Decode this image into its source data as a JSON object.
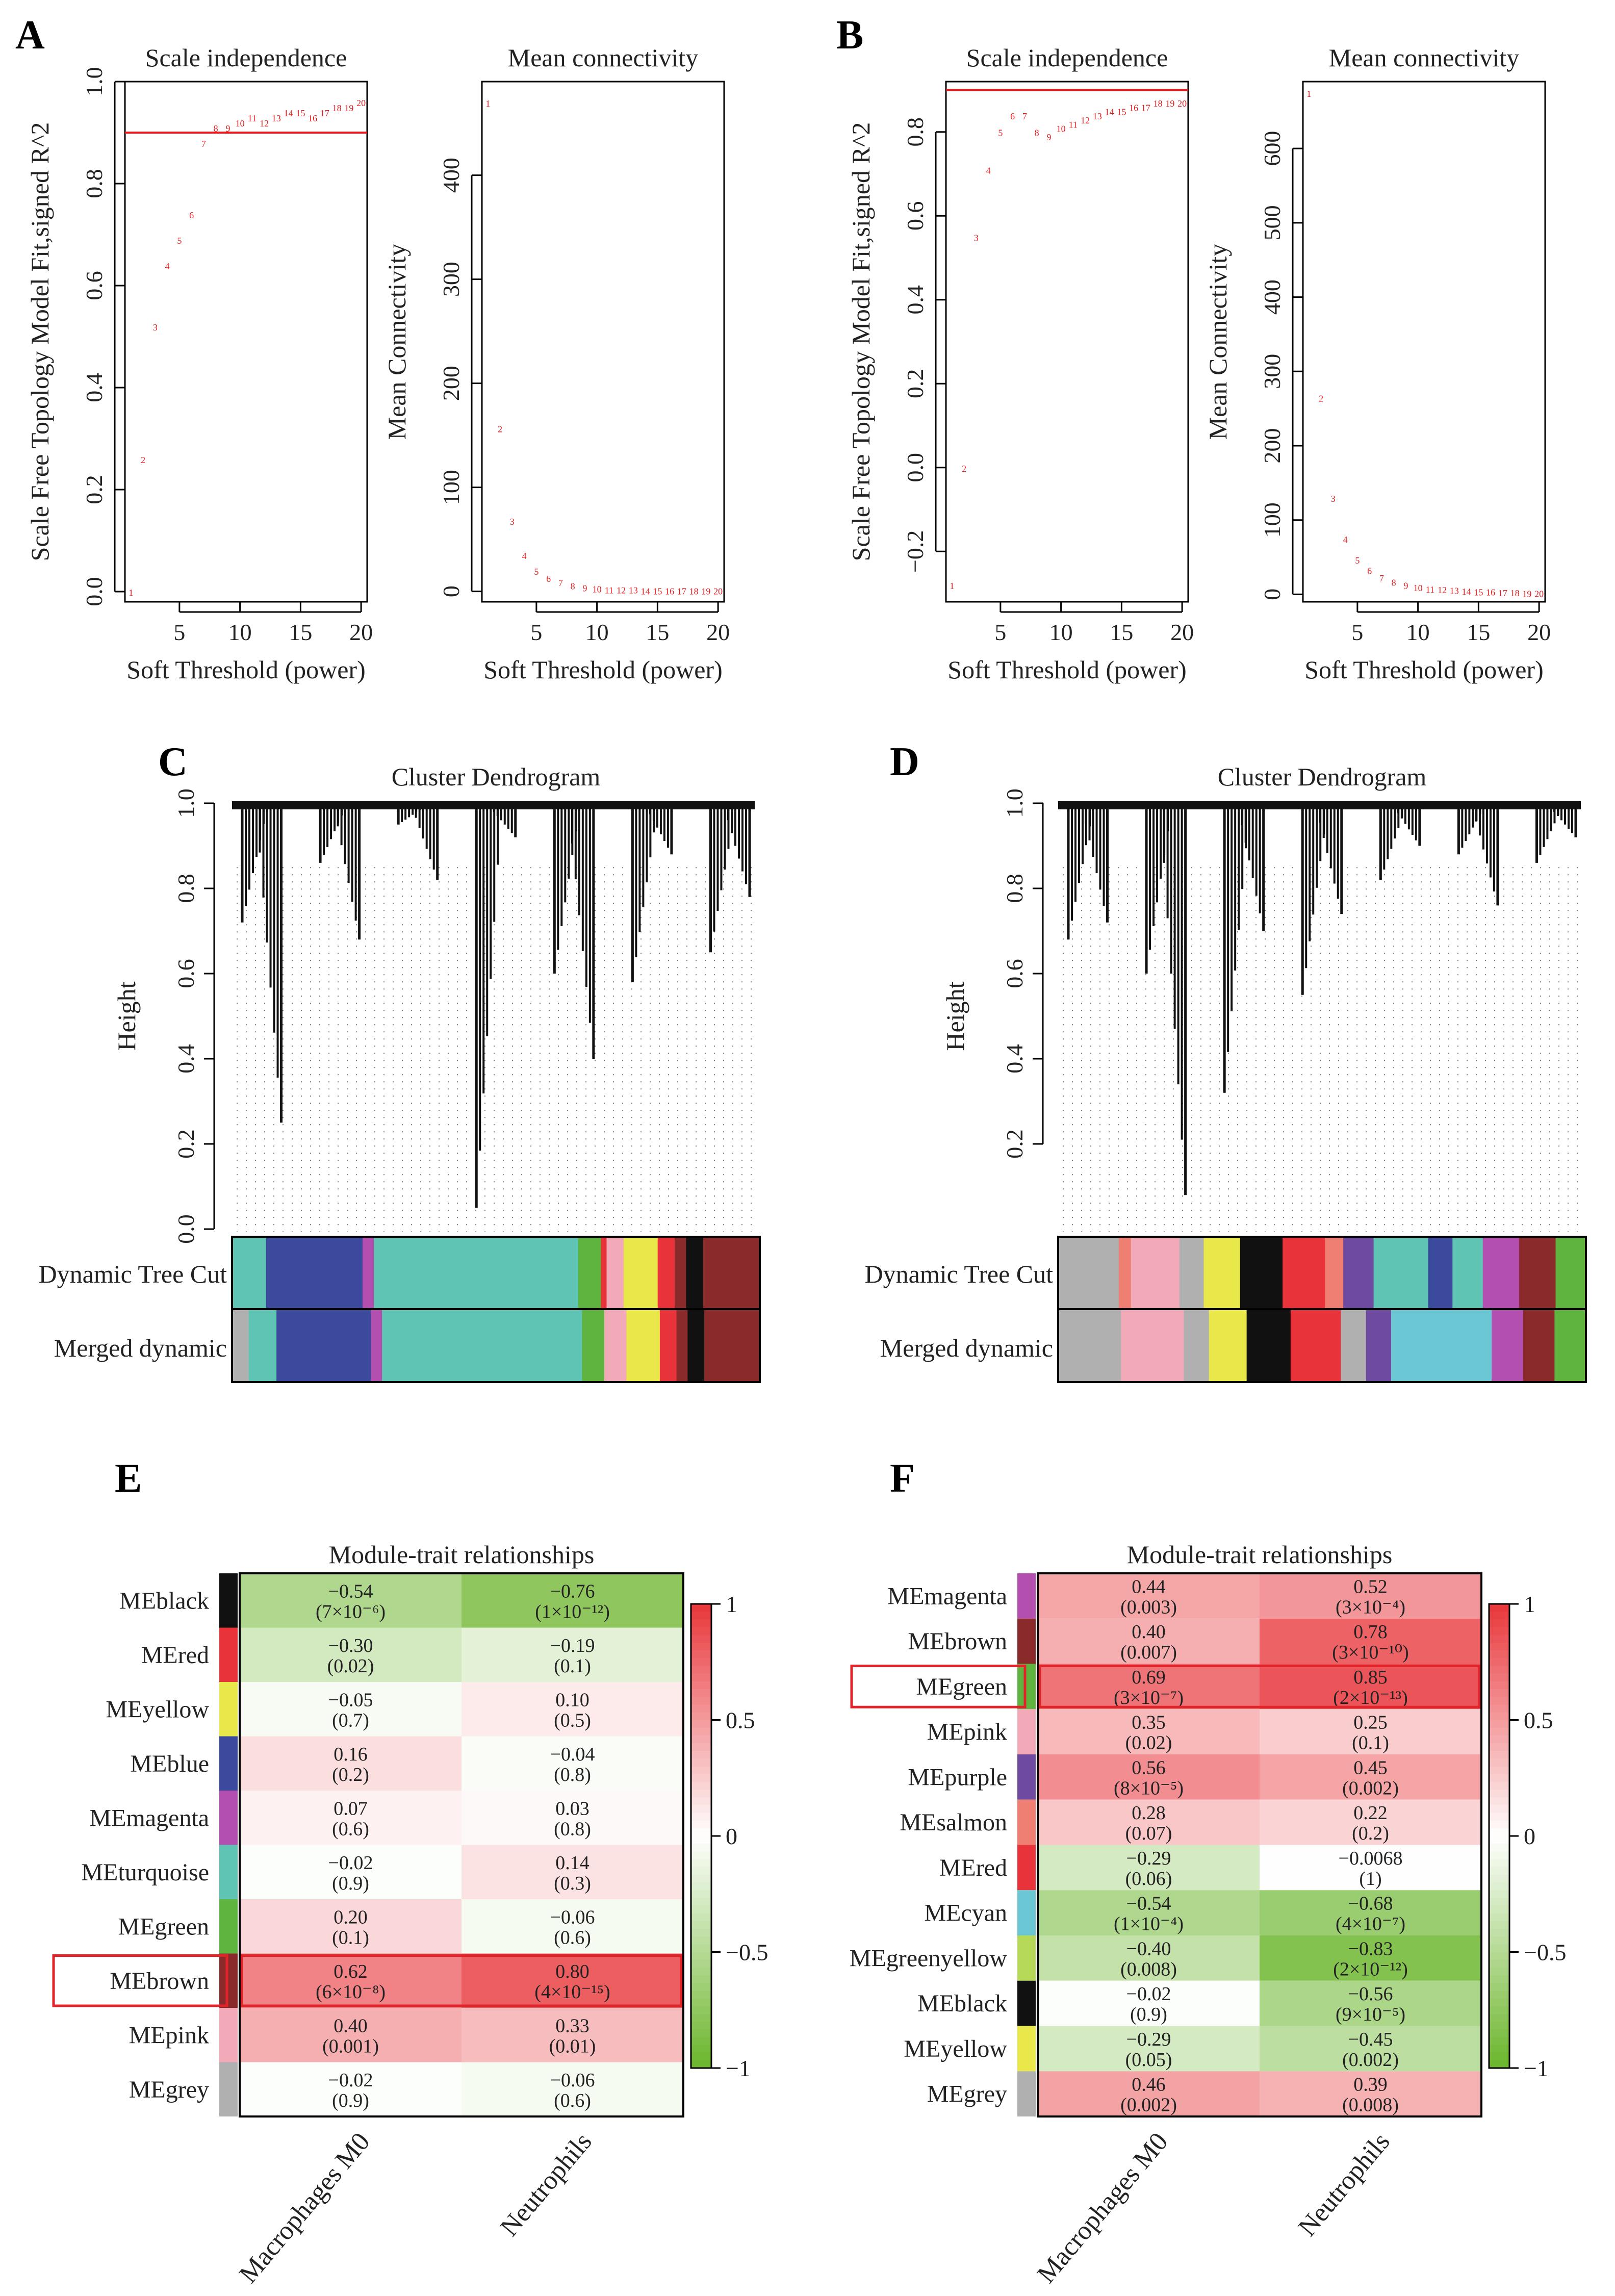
{
  "figure": {
    "panel_labels": [
      "A",
      "B",
      "C",
      "D",
      "E",
      "F"
    ],
    "cell_value_sup_note": "p-values shown in parentheses beneath correlation coefficients"
  },
  "colors": {
    "red": "#e41a1c",
    "text": "#222222",
    "pos_max": "#e8363a",
    "neg_max": "#6bb52b",
    "highlight_box": "#e0242a",
    "modules": {
      "black": "#111111",
      "red": "#e8333a",
      "yellow": "#e8e84a",
      "blue": "#3b4a9c",
      "magenta": "#b34fae",
      "turquoise": "#5fc4b4",
      "green": "#5fb440",
      "brown": "#8b2a2a",
      "pink": "#f2a9b8",
      "grey": "#b0b0b0",
      "purple": "#6e4aa0",
      "salmon": "#ef7f72",
      "cyan": "#6cc7d4",
      "greenyellow": "#b6d957"
    }
  },
  "chart_data": [
    {
      "panel": "A",
      "type": "scatter",
      "title": "Scale independence",
      "xlabel": "Soft Threshold (power)",
      "ylabel": "Scale Free Topology Model Fit,signed R^2",
      "x": [
        1,
        2,
        3,
        4,
        5,
        6,
        7,
        8,
        9,
        10,
        11,
        12,
        13,
        14,
        15,
        16,
        17,
        18,
        19,
        20
      ],
      "y": [
        0.0,
        0.26,
        0.52,
        0.64,
        0.69,
        0.74,
        0.88,
        0.91,
        0.91,
        0.92,
        0.93,
        0.92,
        0.93,
        0.94,
        0.94,
        0.93,
        0.94,
        0.95,
        0.95,
        0.96
      ],
      "xlim": [
        0.5,
        20.5
      ],
      "ylim": [
        -0.02,
        1.0
      ],
      "xticks": [
        "5",
        "10",
        "15",
        "20"
      ],
      "yticks": [
        "0.0",
        "0.2",
        "0.4",
        "0.6",
        "0.8",
        "1.0"
      ],
      "hline": 0.9
    },
    {
      "panel": "A",
      "type": "scatter",
      "title": "Mean connectivity",
      "xlabel": "Soft Threshold (power)",
      "ylabel": "Mean Connectivity",
      "x": [
        1,
        2,
        3,
        4,
        5,
        6,
        7,
        8,
        9,
        10,
        11,
        12,
        13,
        14,
        15,
        16,
        17,
        18,
        19,
        20
      ],
      "y": [
        470,
        157,
        68,
        35,
        20,
        13,
        9,
        6,
        4,
        3,
        2,
        2,
        2,
        1,
        1,
        1,
        1,
        1,
        1,
        1
      ],
      "xlim": [
        0.5,
        20.5
      ],
      "ylim": [
        -10,
        490
      ],
      "xticks": [
        "5",
        "10",
        "15",
        "20"
      ],
      "yticks": [
        "0",
        "100",
        "200",
        "300",
        "400"
      ]
    },
    {
      "panel": "B",
      "type": "scatter",
      "title": "Scale independence",
      "xlabel": "Soft Threshold (power)",
      "ylabel": "Scale Free Topology Model Fit,signed R^2",
      "x": [
        1,
        2,
        3,
        4,
        5,
        6,
        7,
        8,
        9,
        10,
        11,
        12,
        13,
        14,
        15,
        16,
        17,
        18,
        19,
        20
      ],
      "y": [
        -0.28,
        0.0,
        0.55,
        0.71,
        0.8,
        0.84,
        0.84,
        0.8,
        0.79,
        0.81,
        0.82,
        0.83,
        0.84,
        0.85,
        0.85,
        0.86,
        0.86,
        0.87,
        0.87,
        0.87
      ],
      "xlim": [
        0.5,
        20.5
      ],
      "ylim": [
        -0.32,
        0.92
      ],
      "xticks": [
        "5",
        "10",
        "15",
        "20"
      ],
      "yticks": [
        "−0.2",
        "0.0",
        "0.2",
        "0.4",
        "0.6",
        "0.8"
      ],
      "hline": 0.9
    },
    {
      "panel": "B",
      "type": "scatter",
      "title": "Mean connectivity",
      "xlabel": "Soft Threshold (power)",
      "ylabel": "Mean Connectivity",
      "x": [
        1,
        2,
        3,
        4,
        5,
        6,
        7,
        8,
        9,
        10,
        11,
        12,
        13,
        14,
        15,
        16,
        17,
        18,
        19,
        20
      ],
      "y": [
        675,
        265,
        130,
        75,
        47,
        33,
        23,
        17,
        13,
        10,
        8,
        7,
        6,
        5,
        4,
        4,
        3,
        3,
        2,
        2
      ],
      "xlim": [
        0.5,
        20.5
      ],
      "ylim": [
        -10,
        690
      ],
      "xticks": [
        "5",
        "10",
        "15",
        "20"
      ],
      "yticks": [
        "0",
        "100",
        "200",
        "300",
        "400",
        "500",
        "600"
      ]
    },
    {
      "panel": "C",
      "type": "dendrogram",
      "title": "Cluster Dendrogram",
      "ylabel": "Height",
      "ylim": [
        0.0,
        1.0
      ],
      "yticks": [
        "0.0",
        "0.2",
        "0.4",
        "0.6",
        "0.8",
        "1.0"
      ],
      "branch_heights": [
        0.72,
        0.25,
        0.86,
        0.68,
        0.95,
        0.82,
        0.05,
        0.92,
        0.6,
        0.4,
        0.58,
        0.88,
        0.65,
        0.78
      ],
      "row_labels": [
        "Dynamic Tree Cut",
        "Merged dynamic"
      ],
      "dynamic_colors": [
        [
          "turquoise",
          6
        ],
        [
          "blue",
          17
        ],
        [
          "magenta",
          2
        ],
        [
          "turquoise",
          36
        ],
        [
          "green",
          4
        ],
        [
          "red",
          1
        ],
        [
          "pink",
          3
        ],
        [
          "yellow",
          6
        ],
        [
          "red",
          3
        ],
        [
          "brown",
          2
        ],
        [
          "black",
          3
        ],
        [
          "brown",
          10
        ]
      ],
      "merged_colors": [
        [
          "grey",
          3
        ],
        [
          "turquoise",
          5
        ],
        [
          "blue",
          17
        ],
        [
          "magenta",
          2
        ],
        [
          "turquoise",
          36
        ],
        [
          "green",
          4
        ],
        [
          "pink",
          4
        ],
        [
          "yellow",
          6
        ],
        [
          "red",
          3
        ],
        [
          "brown",
          2
        ],
        [
          "black",
          3
        ],
        [
          "brown",
          10
        ]
      ]
    },
    {
      "panel": "D",
      "type": "dendrogram",
      "title": "Cluster Dendrogram",
      "ylabel": "Height",
      "ylim": [
        0.0,
        1.0
      ],
      "yticks": [
        "0.2",
        "0.4",
        "0.6",
        "0.8",
        "1.0"
      ],
      "branch_heights": [
        0.68,
        0.72,
        0.6,
        0.08,
        0.32,
        0.7,
        0.55,
        0.74,
        0.82,
        0.9,
        0.88,
        0.76,
        0.86,
        0.92
      ],
      "row_labels": [
        "Dynamic Tree Cut",
        "Merged dynamic"
      ],
      "dynamic_colors": [
        [
          "grey",
          10
        ],
        [
          "salmon",
          2
        ],
        [
          "pink",
          8
        ],
        [
          "grey",
          4
        ],
        [
          "yellow",
          6
        ],
        [
          "black",
          7
        ],
        [
          "red",
          7
        ],
        [
          "salmon",
          3
        ],
        [
          "purple",
          5
        ],
        [
          "turquoise",
          9
        ],
        [
          "blue",
          4
        ],
        [
          "turquoise",
          5
        ],
        [
          "magenta",
          6
        ],
        [
          "brown",
          6
        ],
        [
          "green",
          5
        ]
      ],
      "merged_colors": [
        [
          "grey",
          10
        ],
        [
          "pink",
          10
        ],
        [
          "grey",
          4
        ],
        [
          "yellow",
          6
        ],
        [
          "black",
          7
        ],
        [
          "red",
          8
        ],
        [
          "grey",
          4
        ],
        [
          "purple",
          4
        ],
        [
          "cyan",
          16
        ],
        [
          "magenta",
          5
        ],
        [
          "brown",
          5
        ],
        [
          "green",
          5
        ]
      ]
    },
    {
      "panel": "E",
      "type": "heatmap",
      "title": "Module-trait relationships",
      "columns": [
        "Macrophages M0",
        "Neutrophils"
      ],
      "colorbar_ticks": [
        "1",
        "0.5",
        "0",
        "−0.5",
        "−1"
      ],
      "highlight": "MEbrown",
      "rows": [
        {
          "name": "MEblack",
          "color": "black",
          "values": [
            -0.54,
            -0.76
          ],
          "labels": [
            "−0.54",
            "−0.76"
          ],
          "p": [
            "(7×10⁻⁶)",
            "(1×10⁻¹²)"
          ]
        },
        {
          "name": "MEred",
          "color": "red",
          "values": [
            -0.3,
            -0.19
          ],
          "labels": [
            "−0.30",
            "−0.19"
          ],
          "p": [
            "(0.02)",
            "(0.1)"
          ]
        },
        {
          "name": "MEyellow",
          "color": "yellow",
          "values": [
            -0.05,
            0.1
          ],
          "labels": [
            "−0.05",
            "0.10"
          ],
          "p": [
            "(0.7)",
            "(0.5)"
          ]
        },
        {
          "name": "MEblue",
          "color": "blue",
          "values": [
            0.16,
            -0.04
          ],
          "labels": [
            "0.16",
            "−0.04"
          ],
          "p": [
            "(0.2)",
            "(0.8)"
          ]
        },
        {
          "name": "MEmagenta",
          "color": "magenta",
          "values": [
            0.07,
            0.03
          ],
          "labels": [
            "0.07",
            "0.03"
          ],
          "p": [
            "(0.6)",
            "(0.8)"
          ]
        },
        {
          "name": "MEturquoise",
          "color": "turquoise",
          "values": [
            -0.02,
            0.14
          ],
          "labels": [
            "−0.02",
            "0.14"
          ],
          "p": [
            "(0.9)",
            "(0.3)"
          ]
        },
        {
          "name": "MEgreen",
          "color": "green",
          "values": [
            0.2,
            -0.06
          ],
          "labels": [
            "0.20",
            "−0.06"
          ],
          "p": [
            "(0.1)",
            "(0.6)"
          ]
        },
        {
          "name": "MEbrown",
          "color": "brown",
          "values": [
            0.62,
            0.8
          ],
          "labels": [
            "0.62",
            "0.80"
          ],
          "p": [
            "(6×10⁻⁸)",
            "(4×10⁻¹⁵)"
          ]
        },
        {
          "name": "MEpink",
          "color": "pink",
          "values": [
            0.4,
            0.33
          ],
          "labels": [
            "0.40",
            "0.33"
          ],
          "p": [
            "(0.001)",
            "(0.01)"
          ]
        },
        {
          "name": "MEgrey",
          "color": "grey",
          "values": [
            -0.02,
            -0.06
          ],
          "labels": [
            "−0.02",
            "−0.06"
          ],
          "p": [
            "(0.9)",
            "(0.6)"
          ]
        }
      ]
    },
    {
      "panel": "F",
      "type": "heatmap",
      "title": "Module-trait relationships",
      "columns": [
        "Macrophages M0",
        "Neutrophils"
      ],
      "colorbar_ticks": [
        "1",
        "0.5",
        "0",
        "−0.5",
        "−1"
      ],
      "highlight": "MEgreen",
      "rows": [
        {
          "name": "MEmagenta",
          "color": "magenta",
          "values": [
            0.44,
            0.52
          ],
          "labels": [
            "0.44",
            "0.52"
          ],
          "p": [
            "(0.003)",
            "(3×10⁻⁴)"
          ]
        },
        {
          "name": "MEbrown",
          "color": "brown",
          "values": [
            0.4,
            0.78
          ],
          "labels": [
            "0.40",
            "0.78"
          ],
          "p": [
            "(0.007)",
            "(3×10⁻¹⁰)"
          ]
        },
        {
          "name": "MEgreen",
          "color": "green",
          "values": [
            0.69,
            0.85
          ],
          "labels": [
            "0.69",
            "0.85"
          ],
          "p": [
            "(3×10⁻⁷)",
            "(2×10⁻¹³)"
          ]
        },
        {
          "name": "MEpink",
          "color": "pink",
          "values": [
            0.35,
            0.25
          ],
          "labels": [
            "0.35",
            "0.25"
          ],
          "p": [
            "(0.02)",
            "(0.1)"
          ]
        },
        {
          "name": "MEpurple",
          "color": "purple",
          "values": [
            0.56,
            0.45
          ],
          "labels": [
            "0.56",
            "0.45"
          ],
          "p": [
            "(8×10⁻⁵)",
            "(0.002)"
          ]
        },
        {
          "name": "MEsalmon",
          "color": "salmon",
          "values": [
            0.28,
            0.22
          ],
          "labels": [
            "0.28",
            "0.22"
          ],
          "p": [
            "(0.07)",
            "(0.2)"
          ]
        },
        {
          "name": "MEred",
          "color": "red",
          "values": [
            -0.29,
            -0.0068
          ],
          "labels": [
            "−0.29",
            "−0.0068"
          ],
          "p": [
            "(0.06)",
            "(1)"
          ]
        },
        {
          "name": "MEcyan",
          "color": "cyan",
          "values": [
            -0.54,
            -0.68
          ],
          "labels": [
            "−0.54",
            "−0.68"
          ],
          "p": [
            "(1×10⁻⁴)",
            "(4×10⁻⁷)"
          ]
        },
        {
          "name": "MEgreenyellow",
          "color": "greenyellow",
          "values": [
            -0.4,
            -0.83
          ],
          "labels": [
            "−0.40",
            "−0.83"
          ],
          "p": [
            "(0.008)",
            "(2×10⁻¹²)"
          ]
        },
        {
          "name": "MEblack",
          "color": "black",
          "values": [
            -0.02,
            -0.56
          ],
          "labels": [
            "−0.02",
            "−0.56"
          ],
          "p": [
            "(0.9)",
            "(9×10⁻⁵)"
          ]
        },
        {
          "name": "MEyellow",
          "color": "yellow",
          "values": [
            -0.29,
            -0.45
          ],
          "labels": [
            "−0.29",
            "−0.45"
          ],
          "p": [
            "(0.05)",
            "(0.002)"
          ]
        },
        {
          "name": "MEgrey",
          "color": "grey",
          "values": [
            0.46,
            0.39
          ],
          "labels": [
            "0.46",
            "0.39"
          ],
          "p": [
            "(0.002)",
            "(0.008)"
          ]
        }
      ]
    }
  ]
}
